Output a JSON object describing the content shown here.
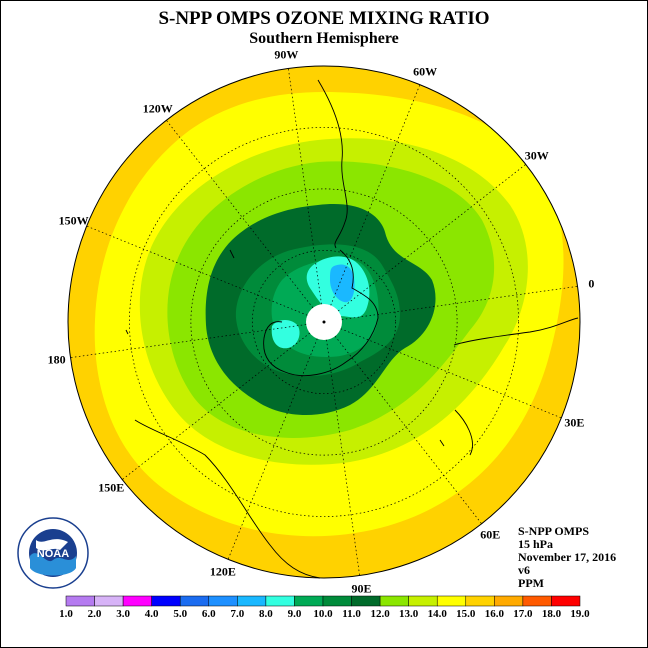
{
  "title": "S-NPP OMPS OZONE MIXING RATIO",
  "subtitle": "Southern Hemisphere",
  "longitude_labels": [
    {
      "text": "90W",
      "angle": 90
    },
    {
      "text": "60W",
      "angle": 60
    },
    {
      "text": "30W",
      "angle": 30
    },
    {
      "text": "0",
      "angle": 0
    },
    {
      "text": "30E",
      "angle": -30
    },
    {
      "text": "60E",
      "angle": -60
    },
    {
      "text": "90E",
      "angle": -90
    },
    {
      "text": "120E",
      "angle": -120
    },
    {
      "text": "150E",
      "angle": -150
    },
    {
      "text": "180",
      "angle": 180
    },
    {
      "text": "150W",
      "angle": 150
    },
    {
      "text": "120W",
      "angle": 120
    }
  ],
  "info": {
    "instrument": "S-NPP OMPS",
    "level": "15 hPa",
    "date": "November 17, 2016",
    "version": "v6",
    "units": "PPM"
  },
  "logo_text": "NOAA",
  "colorbar": {
    "labels": [
      "1.0",
      "2.0",
      "3.0",
      "4.0",
      "5.0",
      "6.0",
      "7.0",
      "8.0",
      "9.0",
      "10.0",
      "11.0",
      "12.0",
      "13.0",
      "14.0",
      "15.0",
      "16.0",
      "17.0",
      "18.0",
      "19.0"
    ],
    "colors": [
      "#b57bf0",
      "#d7b3f7",
      "#ff00ff",
      "#0000ff",
      "#1b6cf0",
      "#1e90ff",
      "#1ab8ff",
      "#33ffe0",
      "#00aa55",
      "#008b3a",
      "#006b2a",
      "#8be600",
      "#c6f000",
      "#ffff00",
      "#ffd200",
      "#ffaa00",
      "#ff5a00",
      "#ff0000",
      "#8b5a3c"
    ]
  },
  "map": {
    "contour_levels_ppm": [
      8.0,
      9.0,
      10.0,
      11.0,
      12.0,
      13.0,
      14.0,
      15.0
    ],
    "level_colors": {
      "7.0": "#1ab8ff",
      "8.0": "#33ffe0",
      "9.0": "#00aa55",
      "10.0": "#008b3a",
      "11.0": "#006b2a",
      "12.0": "#8be600",
      "13.0": "#c6f000",
      "14.0": "#ffff00",
      "15.0": "#ffd200"
    }
  }
}
